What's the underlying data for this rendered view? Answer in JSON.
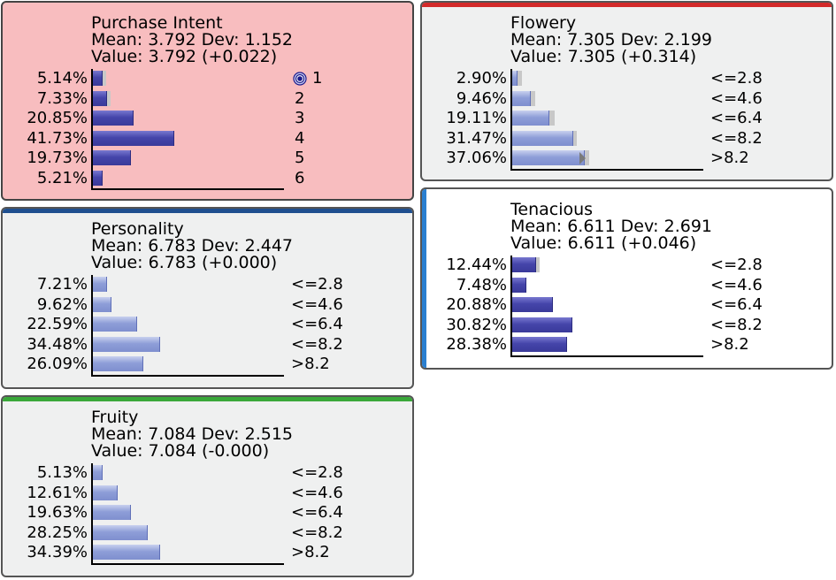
{
  "nodes": {
    "purchase_intent": {
      "title": "Purchase Intent",
      "mean_line": "Mean: 3.792 Dev: 1.152",
      "value_line": "Value: 3.792 (+0.022)",
      "background": "#f8bdbf",
      "rows": [
        {
          "pct": "5.14%",
          "value": 5.14,
          "label": "1"
        },
        {
          "pct": "7.33%",
          "value": 7.33,
          "label": "2"
        },
        {
          "pct": "20.85%",
          "value": 20.85,
          "label": "3"
        },
        {
          "pct": "41.73%",
          "value": 41.73,
          "label": "4"
        },
        {
          "pct": "19.73%",
          "value": 19.73,
          "label": "5"
        },
        {
          "pct": "5.21%",
          "value": 5.21,
          "label": "6"
        }
      ],
      "target_icon": "target-icon"
    },
    "flowery": {
      "title": "Flowery",
      "mean_line": "Mean: 7.305 Dev: 2.199",
      "value_line": "Value: 7.305 (+0.314)",
      "accent": "#d32a2a",
      "rows": [
        {
          "pct": "2.90%",
          "value": 2.9,
          "label": "<=2.8"
        },
        {
          "pct": "9.46%",
          "value": 9.46,
          "label": "<=4.6"
        },
        {
          "pct": "19.11%",
          "value": 19.11,
          "label": "<=6.4"
        },
        {
          "pct": "31.47%",
          "value": 31.47,
          "label": "<=8.2"
        },
        {
          "pct": "37.06%",
          "value": 37.06,
          "label": ">8.2"
        }
      ]
    },
    "personality": {
      "title": "Personality",
      "mean_line": "Mean: 6.783 Dev: 2.447",
      "value_line": "Value: 6.783 (+0.000)",
      "accent": "#1f4f8f",
      "rows": [
        {
          "pct": "7.21%",
          "value": 7.21,
          "label": "<=2.8"
        },
        {
          "pct": "9.62%",
          "value": 9.62,
          "label": "<=4.6"
        },
        {
          "pct": "22.59%",
          "value": 22.59,
          "label": "<=6.4"
        },
        {
          "pct": "34.48%",
          "value": 34.48,
          "label": "<=8.2"
        },
        {
          "pct": "26.09%",
          "value": 26.09,
          "label": ">8.2"
        }
      ]
    },
    "tenacious": {
      "title": "Tenacious",
      "mean_line": "Mean: 6.611 Dev: 2.691",
      "value_line": "Value: 6.611 (+0.046)",
      "accent": "#2a7fd0",
      "rows": [
        {
          "pct": "12.44%",
          "value": 12.44,
          "label": "<=2.8"
        },
        {
          "pct": "7.48%",
          "value": 7.48,
          "label": "<=4.6"
        },
        {
          "pct": "20.88%",
          "value": 20.88,
          "label": "<=6.4"
        },
        {
          "pct": "30.82%",
          "value": 30.82,
          "label": "<=8.2"
        },
        {
          "pct": "28.38%",
          "value": 28.38,
          "label": ">8.2"
        }
      ]
    },
    "fruity": {
      "title": "Fruity",
      "mean_line": "Mean: 7.084 Dev: 2.515",
      "value_line": "Value: 7.084 (-0.000)",
      "accent": "#3aa83a",
      "rows": [
        {
          "pct": "5.13%",
          "value": 5.13,
          "label": "<=2.8"
        },
        {
          "pct": "12.61%",
          "value": 12.61,
          "label": "<=4.6"
        },
        {
          "pct": "19.63%",
          "value": 19.63,
          "label": "<=6.4"
        },
        {
          "pct": "28.25%",
          "value": 28.25,
          "label": "<=8.2"
        },
        {
          "pct": "34.39%",
          "value": 34.39,
          "label": ">8.2"
        }
      ]
    }
  }
}
